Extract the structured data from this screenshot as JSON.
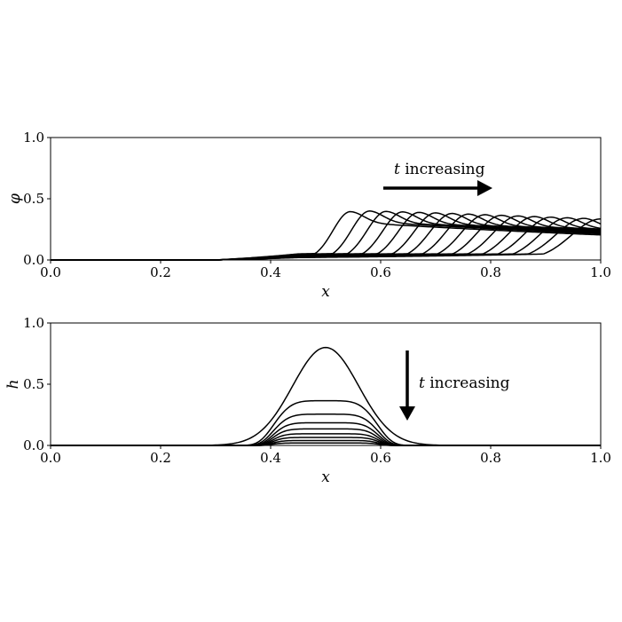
{
  "chart_data": [
    {
      "type": "line",
      "ylabel": "φ",
      "xlabel": "x",
      "xlim": [
        0.0,
        1.0
      ],
      "ylim": [
        0.0,
        1.0
      ],
      "xticks": [
        "0.0",
        "0.2",
        "0.4",
        "0.6",
        "0.8",
        "1.0"
      ],
      "yticks": [
        "0.0",
        "0.5",
        "1.0"
      ],
      "annotation": {
        "var": "t",
        "text": "increasing",
        "arrow_direction": "right"
      },
      "series": [
        {
          "values_peak": [
            0.545,
            0.395
          ]
        },
        {
          "values_peak": [
            0.58,
            0.4
          ]
        },
        {
          "values_peak": [
            0.61,
            0.397
          ]
        },
        {
          "values_peak": [
            0.64,
            0.393
          ]
        },
        {
          "values_peak": [
            0.67,
            0.389
          ]
        },
        {
          "values_peak": [
            0.7,
            0.385
          ]
        },
        {
          "values_peak": [
            0.73,
            0.38
          ]
        },
        {
          "values_peak": [
            0.76,
            0.375
          ]
        },
        {
          "values_peak": [
            0.79,
            0.37
          ]
        },
        {
          "values_peak": [
            0.82,
            0.365
          ]
        },
        {
          "values_peak": [
            0.85,
            0.36
          ]
        },
        {
          "values_peak": [
            0.88,
            0.355
          ]
        },
        {
          "values_peak": [
            0.91,
            0.35
          ]
        },
        {
          "values_peak": [
            0.94,
            0.345
          ]
        },
        {
          "values_peak": [
            0.97,
            0.34
          ]
        },
        {
          "values_peak": [
            1.0,
            0.335
          ]
        }
      ]
    },
    {
      "type": "line",
      "ylabel": "h",
      "xlabel": "x",
      "xlim": [
        0.0,
        1.0
      ],
      "ylim": [
        0.0,
        1.0
      ],
      "xticks": [
        "0.0",
        "0.2",
        "0.4",
        "0.6",
        "0.8",
        "1.0"
      ],
      "yticks": [
        "0.0",
        "0.5",
        "1.0"
      ],
      "annotation": {
        "var": "t",
        "text": "increasing",
        "arrow_direction": "down"
      },
      "series": [
        {
          "max": 0.8
        },
        {
          "max": 0.365
        },
        {
          "max": 0.255
        },
        {
          "max": 0.185
        },
        {
          "max": 0.135
        },
        {
          "max": 0.095
        },
        {
          "max": 0.065
        },
        {
          "max": 0.04
        },
        {
          "max": 0.02
        }
      ]
    }
  ]
}
